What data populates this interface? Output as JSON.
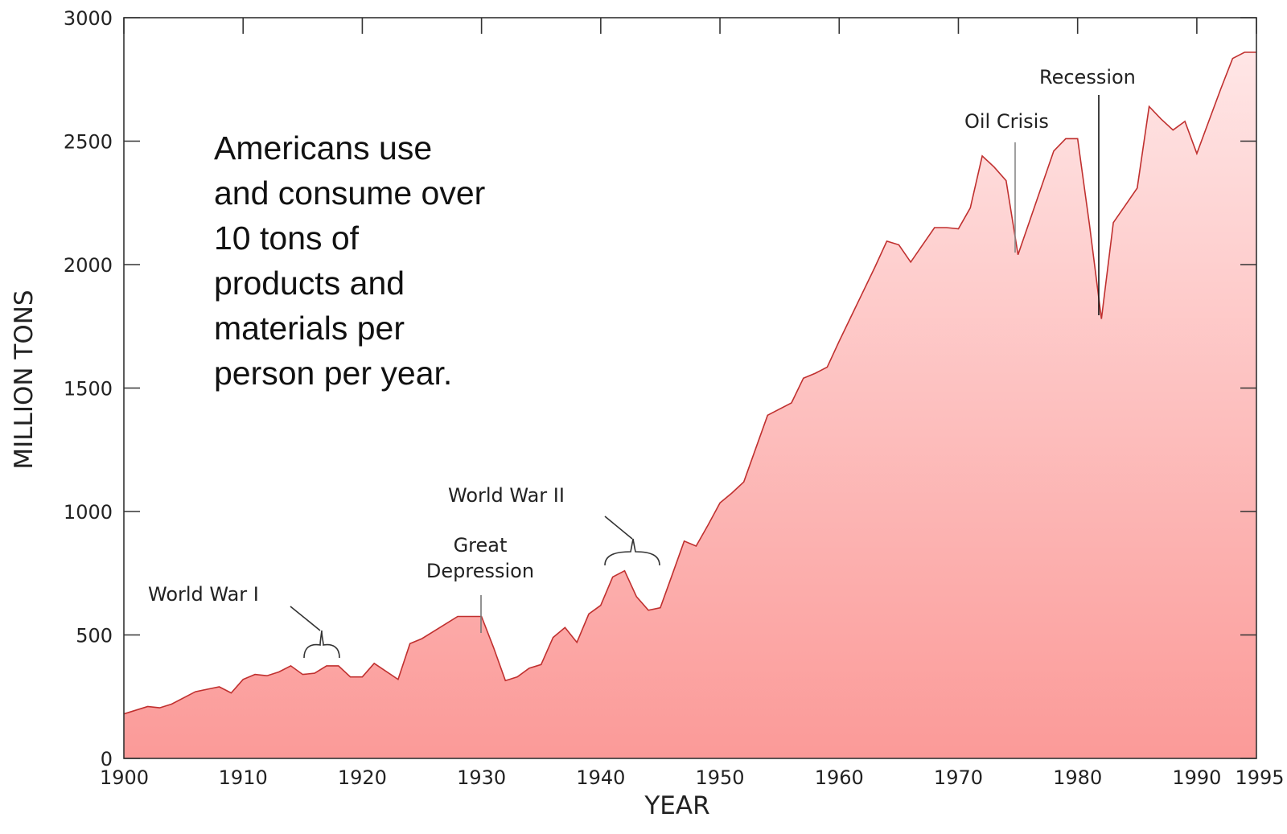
{
  "callout_text": "Americans use\nand consume over\n10 tons of\nproducts and\nmaterials per\nperson per year.",
  "chart_data": {
    "type": "area",
    "xlabel": "YEAR",
    "ylabel": "MILLION TONS",
    "xlim": [
      1900,
      1995
    ],
    "ylim": [
      0,
      3000
    ],
    "x_ticks": [
      1900,
      1910,
      1920,
      1930,
      1940,
      1950,
      1960,
      1970,
      1980,
      1990,
      1995
    ],
    "y_ticks": [
      0,
      500,
      1000,
      1500,
      2000,
      2500,
      3000
    ],
    "grid": false,
    "colors": {
      "fill_top": "#ffe6e6",
      "fill_bottom": "#fb9a98",
      "line": "#c0302f",
      "axis": "#333333"
    },
    "series": [
      {
        "x": [
          1900,
          1902,
          1903,
          1904,
          1906,
          1907,
          1908,
          1909,
          1910,
          1911,
          1912,
          1913,
          1914,
          1915,
          1916,
          1917,
          1918,
          1919,
          1920,
          1921,
          1923,
          1924,
          1925,
          1926,
          1927,
          1928,
          1929,
          1930,
          1931,
          1932,
          1933,
          1934,
          1935,
          1936,
          1937,
          1938,
          1939,
          1940,
          1941,
          1942,
          1943,
          1944,
          1945,
          1946,
          1947,
          1948,
          1949,
          1950,
          1951,
          1952,
          1953,
          1954,
          1955,
          1956,
          1957,
          1958,
          1959,
          1960,
          1961,
          1962,
          1963,
          1964,
          1965,
          1966,
          1967,
          1968,
          1969,
          1970,
          1971,
          1972,
          1973,
          1974,
          1975,
          1976,
          1977,
          1978,
          1979,
          1980,
          1981,
          1982,
          1983,
          1984,
          1985,
          1986,
          1987,
          1988,
          1989,
          1990,
          1991,
          1992,
          1993,
          1994,
          1995
        ],
        "y": [
          180,
          210,
          205,
          220,
          270,
          280,
          290,
          265,
          320,
          340,
          335,
          350,
          375,
          340,
          345,
          375,
          375,
          330,
          330,
          385,
          320,
          465,
          485,
          515,
          545,
          575,
          575,
          575,
          450,
          315,
          330,
          365,
          380,
          490,
          530,
          470,
          585,
          620,
          735,
          760,
          655,
          600,
          610,
          745,
          880,
          860,
          945,
          1035,
          1075,
          1120,
          1255,
          1390,
          1415,
          1440,
          1540,
          1560,
          1585,
          1690,
          1790,
          1890,
          1990,
          2095,
          2080,
          2010,
          2080,
          2150,
          2150,
          2145,
          2230,
          2440,
          2395,
          2340,
          2040,
          2180,
          2320,
          2460,
          2510,
          2510,
          2160,
          1780,
          2170,
          2240,
          2310,
          2640,
          2590,
          2545,
          2580,
          2450,
          2580,
          2710,
          2835,
          2860,
          2860
        ]
      }
    ],
    "annotations": [
      {
        "text": "World War I",
        "year": 1917,
        "kind": "brace"
      },
      {
        "text": "Great",
        "year": 1930,
        "kind": "label"
      },
      {
        "text": "Depression",
        "year": 1930,
        "kind": "line"
      },
      {
        "text": "World War II",
        "year": 1943,
        "kind": "brace"
      },
      {
        "text": "Oil Crisis",
        "year": 1974,
        "kind": "line"
      },
      {
        "text": "Recession",
        "year": 1982,
        "kind": "line"
      }
    ]
  }
}
